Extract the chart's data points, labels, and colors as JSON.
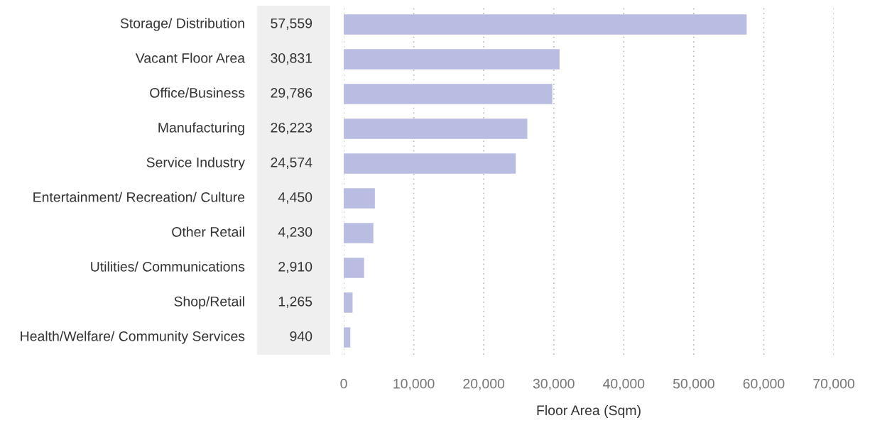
{
  "chart_data": {
    "type": "bar",
    "orientation": "horizontal",
    "xlabel": "Floor Area (Sqm)",
    "categories": [
      "Storage/ Distribution",
      "Vacant Floor Area",
      "Office/Business",
      "Manufacturing",
      "Service Industry",
      "Entertainment/ Recreation/ Culture",
      "Other Retail",
      "Utilities/ Communications",
      "Shop/Retail",
      "Health/Welfare/ Community Services"
    ],
    "values": [
      57559,
      30831,
      29786,
      26223,
      24574,
      4450,
      4230,
      2910,
      1265,
      940
    ],
    "value_labels": [
      "57,559",
      "30,831",
      "29,786",
      "26,223",
      "24,574",
      "4,450",
      "4,230",
      "2,910",
      "1,265",
      "940"
    ],
    "color": "#babde2",
    "grid": "x",
    "legend": false,
    "xlim": [
      0,
      70000
    ],
    "xticks": [
      {
        "value": 0,
        "label": "0"
      },
      {
        "value": 10000,
        "label": "10,000"
      },
      {
        "value": 20000,
        "label": "20,000"
      },
      {
        "value": 30000,
        "label": "30,000"
      },
      {
        "value": 40000,
        "label": "40,000"
      },
      {
        "value": 50000,
        "label": "50,000"
      },
      {
        "value": 60000,
        "label": "60,000"
      },
      {
        "value": 70000,
        "label": "70,000"
      }
    ]
  }
}
